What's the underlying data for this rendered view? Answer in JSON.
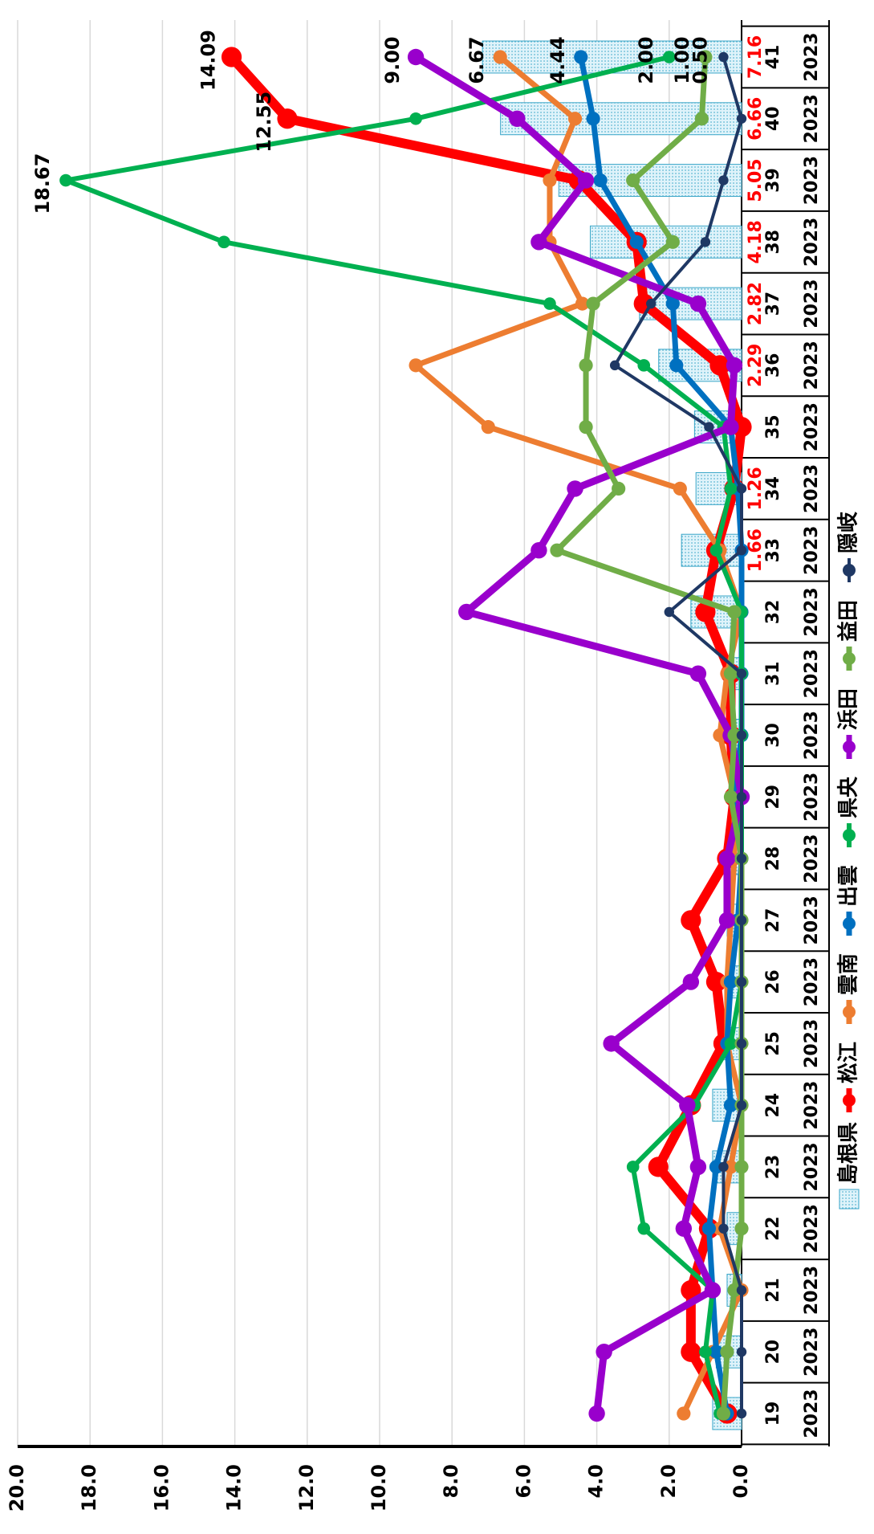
{
  "chart_data": {
    "type": "line",
    "categories": [
      "19",
      "20",
      "21",
      "22",
      "23",
      "24",
      "25",
      "26",
      "27",
      "28",
      "29",
      "30",
      "31",
      "32",
      "33",
      "34",
      "35",
      "36",
      "37",
      "38",
      "39",
      "40",
      "41"
    ],
    "year_row": [
      "2023",
      "2023",
      "2023",
      "2023",
      "2023",
      "2023",
      "2023",
      "2023",
      "2023",
      "2023",
      "2023",
      "2023",
      "2023",
      "2023",
      "2023",
      "2023",
      "2023",
      "2023",
      "2023",
      "2023",
      "2023",
      "2023",
      "2023"
    ],
    "bar_series": {
      "name": "島根県",
      "color": "#3aa6c8",
      "values": [
        0.8,
        0.7,
        0.4,
        0.4,
        0.8,
        0.8,
        0.5,
        0.4,
        0.4,
        0.2,
        0.1,
        0.2,
        0.3,
        1.4,
        1.66,
        1.26,
        1.3,
        2.29,
        2.82,
        4.18,
        5.05,
        6.66,
        7.16
      ],
      "value_labels": [
        null,
        null,
        null,
        null,
        null,
        null,
        null,
        null,
        null,
        null,
        null,
        null,
        null,
        null,
        "1.66",
        "1.26",
        null,
        "2.29",
        "2.82",
        "4.18",
        "5.05",
        "6.66",
        "7.16"
      ]
    },
    "series": [
      {
        "name": "松江",
        "color": "#ff0000",
        "width": 12,
        "values": [
          0.4,
          1.4,
          1.4,
          0.9,
          2.3,
          1.4,
          0.5,
          0.7,
          1.4,
          0.4,
          0.2,
          0.3,
          0.3,
          1.0,
          0.7,
          0.2,
          0.0,
          0.6,
          2.7,
          2.9,
          4.5,
          12.55,
          14.09
        ],
        "value_labels": [
          null,
          null,
          null,
          null,
          null,
          null,
          null,
          null,
          null,
          null,
          null,
          null,
          null,
          null,
          null,
          null,
          null,
          null,
          null,
          null,
          null,
          "12.55",
          "14.09"
        ]
      },
      {
        "name": "雲南",
        "color": "#ed7d31",
        "width": 7,
        "values": [
          1.6,
          0.8,
          0.0,
          0.6,
          0.3,
          0.0,
          0.4,
          0.4,
          0.3,
          0.2,
          0.2,
          0.6,
          0.4,
          0.0,
          0.6,
          1.7,
          7.0,
          9.0,
          4.4,
          5.3,
          5.3,
          4.6,
          6.67
        ],
        "value_labels": [
          null,
          null,
          null,
          null,
          null,
          null,
          null,
          null,
          null,
          null,
          null,
          null,
          null,
          null,
          null,
          null,
          null,
          null,
          null,
          null,
          null,
          null,
          "6.67"
        ]
      },
      {
        "name": "出雲",
        "color": "#0070c0",
        "width": 7,
        "values": [
          0.4,
          0.7,
          0.8,
          0.9,
          0.7,
          0.3,
          0.4,
          0.3,
          0.1,
          0.0,
          0.2,
          0.0,
          0.0,
          0.0,
          0.0,
          0.1,
          0.3,
          1.8,
          1.9,
          2.9,
          3.9,
          4.1,
          4.44
        ],
        "value_labels": [
          null,
          null,
          null,
          null,
          null,
          null,
          null,
          null,
          null,
          null,
          null,
          null,
          null,
          null,
          null,
          null,
          null,
          null,
          null,
          null,
          null,
          null,
          "4.44"
        ]
      },
      {
        "name": "県央",
        "color": "#00b050",
        "width": 6,
        "values": [
          0.6,
          1.0,
          0.8,
          2.7,
          3.0,
          1.3,
          0.3,
          0.0,
          0.0,
          0.0,
          0.0,
          0.0,
          0.0,
          0.0,
          0.7,
          0.3,
          0.5,
          2.7,
          5.3,
          14.3,
          18.67,
          9.0,
          2.0
        ],
        "value_labels": [
          null,
          null,
          null,
          null,
          null,
          null,
          null,
          null,
          null,
          null,
          null,
          null,
          null,
          null,
          null,
          null,
          null,
          null,
          null,
          null,
          "18.67",
          null,
          "2.00"
        ]
      },
      {
        "name": "浜田",
        "color": "#9900cc",
        "width": 9,
        "values": [
          4.0,
          3.8,
          0.8,
          1.6,
          1.2,
          1.5,
          3.6,
          1.4,
          0.4,
          0.4,
          0.0,
          0.3,
          1.2,
          7.6,
          5.6,
          4.6,
          0.3,
          0.2,
          1.2,
          5.6,
          4.3,
          6.2,
          9.0
        ],
        "value_labels": [
          null,
          null,
          null,
          null,
          null,
          null,
          null,
          null,
          null,
          null,
          null,
          null,
          null,
          null,
          null,
          null,
          null,
          null,
          null,
          null,
          null,
          null,
          "9.00"
        ]
      },
      {
        "name": "益田",
        "color": "#70ad47",
        "width": 7,
        "values": [
          0.5,
          0.4,
          0.2,
          0.0,
          0.0,
          0.0,
          0.0,
          0.0,
          0.0,
          0.0,
          0.3,
          0.2,
          0.3,
          0.2,
          5.1,
          3.4,
          4.3,
          4.3,
          4.1,
          1.9,
          3.0,
          1.1,
          1.0
        ],
        "value_labels": [
          null,
          null,
          null,
          null,
          null,
          null,
          null,
          null,
          null,
          null,
          null,
          null,
          null,
          null,
          null,
          null,
          null,
          null,
          null,
          null,
          null,
          null,
          "1.00"
        ]
      },
      {
        "name": "隠岐",
        "color": "#1f3864",
        "width": 4,
        "values": [
          0.0,
          0.0,
          0.0,
          0.5,
          0.5,
          0.0,
          0.0,
          0.0,
          0.0,
          0.0,
          0.0,
          0.0,
          0.0,
          2.0,
          0.0,
          0.0,
          0.9,
          3.5,
          2.5,
          1.0,
          0.5,
          0.0,
          0.5
        ],
        "value_labels": [
          null,
          null,
          null,
          null,
          null,
          null,
          null,
          null,
          null,
          null,
          null,
          null,
          null,
          null,
          null,
          null,
          null,
          null,
          null,
          null,
          null,
          null,
          "0.50"
        ]
      }
    ],
    "ylim": [
      0,
      20
    ],
    "yticks": [
      {
        "value": 0,
        "label": "0.0"
      },
      {
        "value": 2,
        "label": "2.0"
      },
      {
        "value": 4,
        "label": "4.0"
      },
      {
        "value": 6,
        "label": "6.0"
      },
      {
        "value": 8,
        "label": "8.0"
      },
      {
        "value": 10,
        "label": "10.0"
      },
      {
        "value": 12,
        "label": "12.0"
      },
      {
        "value": 14,
        "label": "14.0"
      },
      {
        "value": 16,
        "label": "16.0"
      },
      {
        "value": 18,
        "label": "18.0"
      },
      {
        "value": 20,
        "label": "20.0"
      }
    ],
    "grid": true,
    "legend": "bottom"
  }
}
